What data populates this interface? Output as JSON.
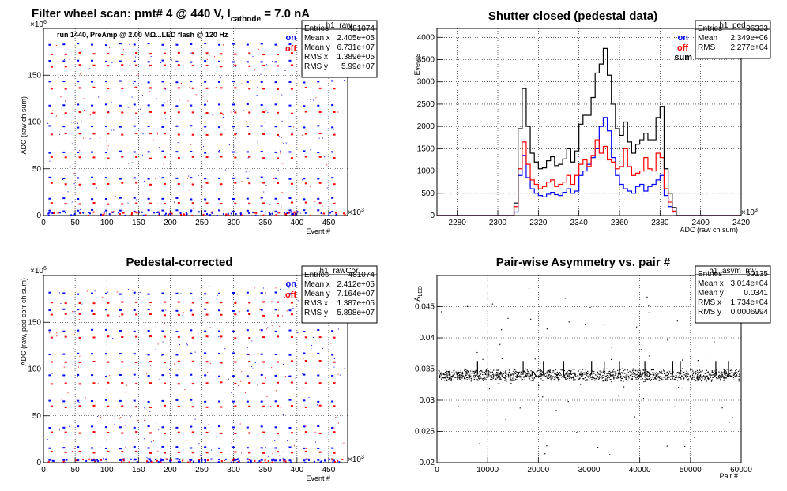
{
  "chart_data": [
    {
      "type": "scatter",
      "title": "Filter wheel scan: pmt#   4 @   440 V, I",
      "title_sub": "cathode",
      "title_tail": " = 7.0 nA",
      "subtitle": "run 1440, PreAmp @ 2.00 MΩ...LED flash @  120 Hz",
      "xlabel": "Event #",
      "ylabel": "ADC (raw ch sum)",
      "x_exponent": "×10",
      "x_exponent_power": "3",
      "y_exponent": "×10",
      "y_exponent_power": "6",
      "xlim": [
        0,
        480
      ],
      "ylim": [
        0,
        200
      ],
      "xticks": [
        0,
        50,
        100,
        150,
        200,
        250,
        300,
        350,
        400,
        450
      ],
      "yticks": [
        0,
        50,
        100,
        150
      ],
      "grid": true,
      "legend": [
        {
          "name": "on",
          "color": "#0000ff"
        },
        {
          "name": "off",
          "color": "#ff0000"
        }
      ],
      "series": [
        {
          "name": "on",
          "levels": [
            5,
            18,
            40,
            68,
            95,
            118,
            143,
            165,
            183
          ]
        },
        {
          "name": "off",
          "levels": [
            13,
            34,
            62,
            87,
            110,
            136,
            160,
            173
          ]
        }
      ],
      "stats": {
        "box_title": "h1_raw",
        "rows": [
          [
            "Entries",
            "481074"
          ],
          [
            "Mean x",
            "2.405e+05"
          ],
          [
            "Mean y",
            "6.731e+07"
          ],
          [
            "RMS x",
            "1.389e+05"
          ],
          [
            "RMS y",
            "5.99e+07"
          ]
        ]
      }
    },
    {
      "type": "line",
      "title": "Shutter closed (pedestal data)",
      "xlabel": "ADC (raw ch sum)",
      "ylabel": "Events",
      "x_exponent": "×10",
      "x_exponent_power": "3",
      "xlim": [
        2270,
        2420
      ],
      "ylim": [
        0,
        4200
      ],
      "xticks": [
        2280,
        2300,
        2320,
        2340,
        2360,
        2380,
        2400,
        2420
      ],
      "yticks": [
        0,
        500,
        1000,
        1500,
        2000,
        2500,
        3000,
        3500,
        4000
      ],
      "grid": true,
      "legend": [
        {
          "name": "on",
          "color": "#0000ff"
        },
        {
          "name": "off",
          "color": "#ff0000"
        },
        {
          "name": "sum",
          "color": "#000000"
        }
      ],
      "x": [
        2306,
        2308,
        2310,
        2312,
        2314,
        2316,
        2318,
        2320,
        2322,
        2324,
        2326,
        2328,
        2330,
        2332,
        2334,
        2336,
        2338,
        2340,
        2342,
        2344,
        2346,
        2348,
        2350,
        2352,
        2354,
        2356,
        2358,
        2360,
        2362,
        2364,
        2366,
        2368,
        2370,
        2372,
        2374,
        2376,
        2378,
        2380,
        2382,
        2384,
        2386,
        2388
      ],
      "series": [
        {
          "name": "on",
          "values": [
            0,
            80,
            900,
            1350,
            850,
            600,
            500,
            450,
            420,
            480,
            520,
            470,
            450,
            520,
            600,
            500,
            550,
            900,
            1000,
            1150,
            1300,
            1500,
            2000,
            2200,
            1900,
            1300,
            900,
            700,
            600,
            550,
            500,
            650,
            700,
            550,
            650,
            700,
            800,
            900,
            450,
            200,
            80,
            0
          ]
        },
        {
          "name": "off",
          "values": [
            0,
            200,
            1050,
            1650,
            1150,
            800,
            700,
            600,
            650,
            750,
            800,
            650,
            700,
            750,
            900,
            700,
            900,
            1150,
            1250,
            1100,
            1350,
            1700,
            1400,
            1550,
            1250,
            1200,
            1050,
            1100,
            1500,
            1100,
            900,
            950,
            1000,
            1300,
            1050,
            1000,
            1400,
            1300,
            600,
            300,
            100,
            0
          ]
        },
        {
          "name": "sum",
          "values": [
            0,
            280,
            1950,
            2850,
            2000,
            1400,
            1200,
            1050,
            1070,
            1230,
            1320,
            1120,
            1150,
            1270,
            1500,
            1200,
            1450,
            2050,
            2250,
            2250,
            2650,
            3200,
            3400,
            3750,
            3150,
            2500,
            1950,
            1800,
            2100,
            1650,
            1400,
            1600,
            1700,
            1850,
            1700,
            1700,
            2200,
            2450,
            1050,
            500,
            180,
            0
          ]
        }
      ],
      "stats": {
        "box_title": "h1_ped",
        "rows": [
          [
            "Entries",
            "96333"
          ],
          [
            "Mean",
            "2.349e+06"
          ],
          [
            "RMS",
            "2.277e+04"
          ]
        ]
      }
    },
    {
      "type": "scatter",
      "title": "Pedestal-corrected",
      "xlabel": "Event #",
      "ylabel": "ADC (raw, ped-corr ch sum)",
      "x_exponent": "×10",
      "x_exponent_power": "3",
      "y_exponent": "×10",
      "y_exponent_power": "6",
      "xlim": [
        0,
        480
      ],
      "ylim": [
        0,
        200
      ],
      "xticks": [
        0,
        50,
        100,
        150,
        200,
        250,
        300,
        350,
        400,
        450
      ],
      "yticks": [
        0,
        50,
        100,
        150
      ],
      "grid": true,
      "legend": [
        {
          "name": "on",
          "color": "#0000ff"
        },
        {
          "name": "off",
          "color": "#ff0000"
        }
      ],
      "series": [
        {
          "name": "on",
          "levels": [
            3,
            16,
            38,
            66,
            93,
            116,
            141,
            163,
            181
          ]
        },
        {
          "name": "off",
          "levels": [
            11,
            32,
            60,
            85,
            108,
            134,
            158,
            171
          ]
        }
      ],
      "stats": {
        "box_title": "h1_rawCor",
        "rows": [
          [
            "Entries",
            "481074"
          ],
          [
            "Mean x",
            "2.412e+05"
          ],
          [
            "Mean y",
            "7.164e+07"
          ],
          [
            "RMS x",
            "1.387e+05"
          ],
          [
            "RMS y",
            "5.898e+07"
          ]
        ]
      }
    },
    {
      "type": "scatter",
      "title": "Pair-wise Asymmetry vs. pair #",
      "xlabel": "Pair #",
      "ylabel": "A",
      "ylabel_sub": "LED",
      "xlim": [
        0,
        60000
      ],
      "ylim": [
        0.02,
        0.05
      ],
      "xticks": [
        0,
        10000,
        20000,
        30000,
        40000,
        50000,
        60000
      ],
      "yticks": [
        0.02,
        0.025,
        0.03,
        0.035,
        0.04,
        0.045
      ],
      "grid": true,
      "mean_value": 0.0341,
      "spike_x": [
        8000,
        17000,
        21000,
        25000,
        30500,
        33000,
        36000,
        41000,
        46500,
        48000,
        55000,
        57500
      ],
      "stats": {
        "box_title": "h1_asym_my",
        "rows": [
          [
            "Entries",
            "60135"
          ],
          [
            "Mean x",
            "3.014e+04"
          ],
          [
            "Mean y",
            "0.0341"
          ],
          [
            "RMS x",
            "1.734e+04"
          ],
          [
            "RMS y",
            "0.0006994"
          ]
        ]
      }
    }
  ]
}
